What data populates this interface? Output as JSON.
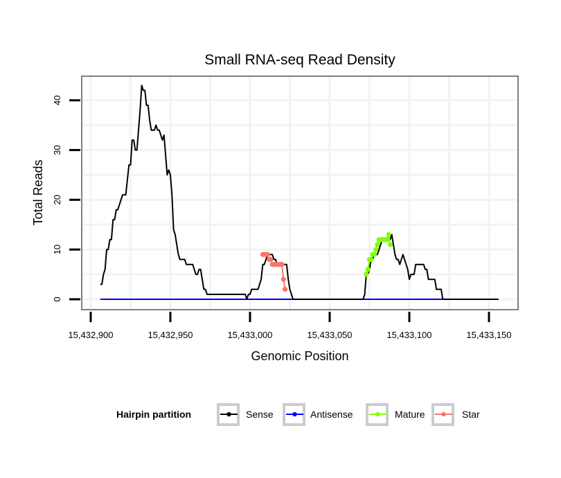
{
  "chart_data": {
    "type": "line",
    "title": "Small RNA-seq Read Density",
    "xlabel": "Genomic Position",
    "ylabel": "Total Reads",
    "xlim": [
      15432890,
      15433160
    ],
    "ylim": [
      -1.7,
      46
    ],
    "x_ticks": [
      15432900,
      15432950,
      15433000,
      15433050,
      15433100,
      15433150
    ],
    "x_tick_labels": [
      "15,432,900",
      "15,432,950",
      "15,433,000",
      "15,433,050",
      "15,433,100",
      "15,433,150"
    ],
    "y_ticks": [
      0,
      10,
      20,
      30,
      40
    ],
    "y_tick_labels": [
      "0",
      "10",
      "20",
      "30",
      "40"
    ],
    "grid": true,
    "legend": {
      "title": "Hairpin partition",
      "position": "bottom",
      "entries": [
        "Sense",
        "Antisense",
        "Mature",
        "Star"
      ]
    },
    "series": [
      {
        "name": "Sense",
        "color": "#000000",
        "markers": false,
        "points": [
          [
            15432906,
            3
          ],
          [
            15432907,
            3
          ],
          [
            15432908,
            5
          ],
          [
            15432909,
            6
          ],
          [
            15432910,
            10
          ],
          [
            15432911,
            10
          ],
          [
            15432912,
            12
          ],
          [
            15432913,
            12
          ],
          [
            15432914,
            16
          ],
          [
            15432915,
            16
          ],
          [
            15432916,
            18
          ],
          [
            15432917,
            18
          ],
          [
            15432918,
            19
          ],
          [
            15432919,
            20
          ],
          [
            15432920,
            21
          ],
          [
            15432921,
            21
          ],
          [
            15432922,
            21
          ],
          [
            15432923,
            24
          ],
          [
            15432924,
            27
          ],
          [
            15432925,
            27
          ],
          [
            15432926,
            32
          ],
          [
            15432927,
            32
          ],
          [
            15432928,
            30
          ],
          [
            15432929,
            30
          ],
          [
            15432930,
            34
          ],
          [
            15432931,
            38
          ],
          [
            15432932,
            43
          ],
          [
            15432933,
            42
          ],
          [
            15432934,
            42
          ],
          [
            15432935,
            39
          ],
          [
            15432936,
            39
          ],
          [
            15432937,
            36
          ],
          [
            15432938,
            34
          ],
          [
            15432939,
            34
          ],
          [
            15432940,
            34
          ],
          [
            15432941,
            35
          ],
          [
            15432942,
            34
          ],
          [
            15432943,
            34
          ],
          [
            15432944,
            33
          ],
          [
            15432945,
            32
          ],
          [
            15432946,
            33
          ],
          [
            15432947,
            29
          ],
          [
            15432948,
            25
          ],
          [
            15432949,
            26
          ],
          [
            15432950,
            25
          ],
          [
            15432951,
            21
          ],
          [
            15432952,
            14
          ],
          [
            15432953,
            13
          ],
          [
            15432954,
            11
          ],
          [
            15432955,
            9
          ],
          [
            15432956,
            8
          ],
          [
            15432957,
            8
          ],
          [
            15432958,
            8
          ],
          [
            15432959,
            8
          ],
          [
            15432960,
            7
          ],
          [
            15432961,
            7
          ],
          [
            15432962,
            7
          ],
          [
            15432963,
            7
          ],
          [
            15432964,
            7
          ],
          [
            15432965,
            6
          ],
          [
            15432966,
            5
          ],
          [
            15432967,
            5
          ],
          [
            15432968,
            6
          ],
          [
            15432969,
            6
          ],
          [
            15432970,
            4
          ],
          [
            15432971,
            2
          ],
          [
            15432972,
            2
          ],
          [
            15432973,
            1
          ],
          [
            15432980,
            1
          ],
          [
            15432990,
            1
          ],
          [
            15432997,
            1
          ],
          [
            15432998,
            0
          ],
          [
            15432999,
            1
          ],
          [
            15433000,
            1
          ],
          [
            15433001,
            2
          ],
          [
            15433002,
            2
          ],
          [
            15433003,
            2
          ],
          [
            15433004,
            2
          ],
          [
            15433005,
            2
          ],
          [
            15433006,
            3
          ],
          [
            15433007,
            4
          ],
          [
            15433008,
            7
          ],
          [
            15433009,
            7
          ],
          [
            15433010,
            8
          ],
          [
            15433011,
            9
          ],
          [
            15433012,
            9
          ],
          [
            15433013,
            9
          ],
          [
            15433014,
            9
          ],
          [
            15433015,
            8
          ],
          [
            15433016,
            8
          ],
          [
            15433017,
            7
          ],
          [
            15433018,
            7
          ],
          [
            15433019,
            7
          ],
          [
            15433020,
            7
          ],
          [
            15433021,
            7
          ],
          [
            15433022,
            7
          ],
          [
            15433023,
            7
          ],
          [
            15433024,
            4
          ],
          [
            15433025,
            2
          ],
          [
            15433026,
            1
          ],
          [
            15433027,
            0
          ],
          [
            15433040,
            0
          ],
          [
            15433060,
            0
          ],
          [
            15433071,
            0
          ],
          [
            15433072,
            1
          ],
          [
            15433073,
            5
          ],
          [
            15433074,
            5
          ],
          [
            15433075,
            6
          ],
          [
            15433076,
            8
          ],
          [
            15433077,
            8
          ],
          [
            15433078,
            9
          ],
          [
            15433079,
            9
          ],
          [
            15433080,
            9
          ],
          [
            15433081,
            10
          ],
          [
            15433082,
            11
          ],
          [
            15433083,
            12
          ],
          [
            15433084,
            12
          ],
          [
            15433085,
            12
          ],
          [
            15433086,
            12
          ],
          [
            15433087,
            12
          ],
          [
            15433088,
            12
          ],
          [
            15433089,
            13
          ],
          [
            15433090,
            11
          ],
          [
            15433091,
            9
          ],
          [
            15433092,
            8
          ],
          [
            15433093,
            8
          ],
          [
            15433094,
            7
          ],
          [
            15433095,
            8
          ],
          [
            15433096,
            9
          ],
          [
            15433097,
            8
          ],
          [
            15433098,
            7
          ],
          [
            15433099,
            6
          ],
          [
            15433100,
            4
          ],
          [
            15433101,
            5
          ],
          [
            15433102,
            5
          ],
          [
            15433103,
            5
          ],
          [
            15433104,
            7
          ],
          [
            15433105,
            7
          ],
          [
            15433106,
            7
          ],
          [
            15433107,
            7
          ],
          [
            15433108,
            7
          ],
          [
            15433109,
            7
          ],
          [
            15433110,
            6
          ],
          [
            15433111,
            6
          ],
          [
            15433112,
            4
          ],
          [
            15433113,
            4
          ],
          [
            15433114,
            4
          ],
          [
            15433115,
            4
          ],
          [
            15433116,
            4
          ],
          [
            15433117,
            2
          ],
          [
            15433118,
            2
          ],
          [
            15433119,
            2
          ],
          [
            15433120,
            2
          ],
          [
            15433121,
            0
          ],
          [
            15433130,
            0
          ],
          [
            15433156,
            0
          ]
        ]
      },
      {
        "name": "Antisense",
        "color": "#0000FF",
        "markers": false,
        "points": [
          [
            15432906,
            0
          ],
          [
            15433121,
            0
          ]
        ]
      },
      {
        "name": "Mature",
        "color": "#7FFF00",
        "markers": true,
        "points": [
          [
            15433073,
            5
          ],
          [
            15433074,
            6
          ],
          [
            15433075,
            8
          ],
          [
            15433076,
            8
          ],
          [
            15433077,
            9
          ],
          [
            15433078,
            9
          ],
          [
            15433079,
            10
          ],
          [
            15433080,
            11
          ],
          [
            15433081,
            12
          ],
          [
            15433082,
            12
          ],
          [
            15433083,
            12
          ],
          [
            15433084,
            12
          ],
          [
            15433085,
            12
          ],
          [
            15433086,
            12
          ],
          [
            15433087,
            13
          ],
          [
            15433088,
            11
          ]
        ]
      },
      {
        "name": "Star",
        "color": "#F8766D",
        "markers": true,
        "points": [
          [
            15433008,
            9
          ],
          [
            15433009,
            9
          ],
          [
            15433010,
            9
          ],
          [
            15433011,
            9
          ],
          [
            15433012,
            8
          ],
          [
            15433013,
            8
          ],
          [
            15433014,
            7
          ],
          [
            15433015,
            7
          ],
          [
            15433016,
            7
          ],
          [
            15433017,
            7
          ],
          [
            15433018,
            7
          ],
          [
            15433019,
            7
          ],
          [
            15433020,
            7
          ],
          [
            15433021,
            4
          ],
          [
            15433022,
            2
          ]
        ]
      }
    ]
  }
}
